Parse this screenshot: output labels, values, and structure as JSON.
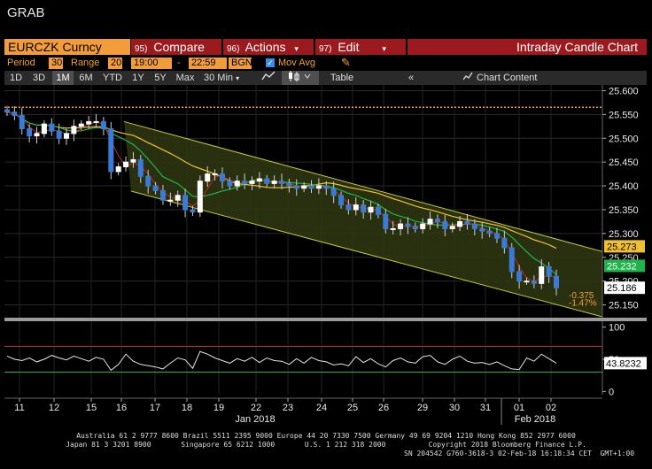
{
  "app_title": "GRAB",
  "header": {
    "ticker": "EURCZK Curncy",
    "compare": {
      "num": "95)",
      "label": "Compare"
    },
    "actions": {
      "num": "96)",
      "label": "Actions"
    },
    "edit": {
      "num": "97)",
      "label": "Edit"
    },
    "chart_type": "Intraday Candle Chart"
  },
  "settings": {
    "period_label": "Period",
    "period_value": "30",
    "range_label": "Range",
    "range_value": "20",
    "time_from": "19:00",
    "time_sep": "-",
    "time_to": "22:59",
    "source": "BGN",
    "mov_avg_label": "Mov Avg",
    "mov_avg_checked": true
  },
  "toolbar": {
    "ranges": [
      "1D",
      "3D",
      "1M",
      "6M",
      "YTD",
      "1Y",
      "5Y",
      "Max"
    ],
    "active_range": "1M",
    "interval": "30 Min",
    "table_label": "Table",
    "chart_content_label": "Chart Content"
  },
  "chart_data": {
    "type": "candlestick",
    "price_axis": {
      "ticks": [
        "25.600",
        "25.550",
        "25.500",
        "25.450",
        "25.400",
        "25.350",
        "25.300",
        "25.250",
        "25.200",
        "25.150"
      ],
      "range": [
        25.125,
        25.612
      ]
    },
    "indicator_axis": {
      "ticks": [
        "100",
        "50",
        "0"
      ],
      "range": [
        -5,
        105
      ],
      "overbought": 70,
      "oversold": 30
    },
    "x_labels": [
      "11",
      "12",
      "15",
      "16",
      "17",
      "18",
      "19",
      "22",
      "23",
      "24",
      "25",
      "26",
      "29",
      "30",
      "31",
      "01",
      "02"
    ],
    "month_labels": [
      "Jan 2018",
      "Feb 2018"
    ],
    "close_series": [
      25.555,
      25.548,
      25.52,
      25.505,
      25.51,
      25.53,
      25.515,
      25.5,
      25.51,
      25.525,
      25.53,
      25.535,
      25.535,
      25.52,
      25.43,
      25.44,
      25.45,
      25.455,
      25.42,
      25.4,
      25.39,
      25.37,
      25.37,
      25.38,
      25.35,
      25.345,
      25.41,
      25.425,
      25.425,
      25.41,
      25.4,
      25.41,
      25.405,
      25.41,
      25.415,
      25.405,
      25.41,
      25.405,
      25.4,
      25.395,
      25.4,
      25.395,
      25.4,
      25.395,
      25.38,
      25.36,
      25.35,
      25.36,
      25.345,
      25.355,
      25.34,
      25.31,
      25.31,
      25.32,
      25.315,
      25.31,
      25.32,
      25.33,
      25.325,
      25.31,
      25.315,
      25.325,
      25.32,
      25.31,
      25.305,
      25.3,
      25.29,
      25.27,
      25.22,
      25.2,
      25.2,
      25.195,
      25.23,
      25.21,
      25.186
    ],
    "indicator_series": [
      55,
      50,
      48,
      52,
      46,
      50,
      56,
      52,
      49,
      55,
      51,
      47,
      53,
      50,
      33,
      42,
      58,
      47,
      42,
      40,
      38,
      35,
      44,
      52,
      49,
      36,
      62,
      58,
      52,
      48,
      44,
      51,
      47,
      53,
      45,
      52,
      48,
      47,
      42,
      51,
      44,
      53,
      48,
      46,
      41,
      43,
      40,
      54,
      45,
      51,
      43,
      38,
      48,
      52,
      46,
      44,
      54,
      56,
      46,
      42,
      50,
      55,
      47,
      44,
      45,
      42,
      46,
      40,
      35,
      34,
      52,
      47,
      58,
      51,
      44
    ],
    "resistance_level": 25.565,
    "labels": {
      "ma_upper": "25.273",
      "ma_mid": "25.232",
      "last": "25.186",
      "change_abs": "-0.375",
      "change_pct": "-1.47%",
      "indicator_last": "43.8232"
    },
    "colors": {
      "ma_upper": "#f0c030",
      "ma_mid": "#1fb44a",
      "last": "#ffffff",
      "channel_fill": "#2d3512",
      "channel_line": "#c7c73a",
      "resistance": "#f39c3a",
      "overbought": "#c0272d",
      "oversold": "#1fb44a"
    }
  },
  "footer": {
    "line1": "Australia 61 2 9777 8600 Brazil 5511 2395 9000 Europe 44 20 7330 7500 Germany 49 69 9204 1210 Hong Kong 852 2977 6000",
    "line2": "Japan 81 3 3201 8900       Singapore 65 6212 1000       U.S. 1 212 318 2000          Copyright 2018 Bloomberg Finance L.P.",
    "line3": "SN 204542 G760-3618-3 02-Feb-18 16:18:34 CET  GMT+1:00"
  }
}
